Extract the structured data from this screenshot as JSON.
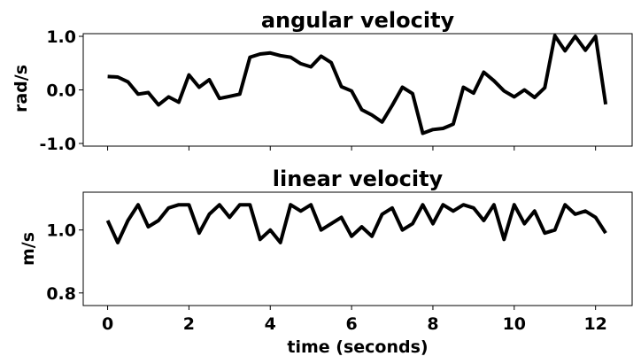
{
  "chart_data": [
    {
      "type": "line",
      "title": "angular velocity",
      "ylabel": "rad/s",
      "xlabel": "",
      "ylim": [
        -1.05,
        1.05
      ],
      "yticks": [
        -1.0,
        0.0,
        1.0
      ],
      "ytick_labels": [
        "-1.0",
        "0.0",
        "1.0"
      ],
      "grid": false,
      "series": [
        {
          "color": "#000000",
          "x": [
            0.0,
            0.25,
            0.5,
            0.75,
            1.0,
            1.25,
            1.5,
            1.75,
            2.0,
            2.25,
            2.5,
            2.75,
            3.0,
            3.25,
            3.5,
            3.75,
            4.0,
            4.25,
            4.5,
            4.75,
            5.0,
            5.25,
            5.5,
            5.75,
            6.0,
            6.25,
            6.5,
            6.75,
            7.0,
            7.25,
            7.5,
            7.75,
            8.0,
            8.25,
            8.5,
            8.75,
            9.0,
            9.25,
            9.5,
            9.75,
            10.0,
            10.25,
            10.5,
            10.75,
            11.0,
            11.25,
            11.5,
            11.75,
            12.0,
            12.25
          ],
          "y": [
            0.25,
            0.24,
            0.15,
            -0.08,
            -0.05,
            -0.28,
            -0.13,
            -0.23,
            0.28,
            0.05,
            0.19,
            -0.16,
            -0.12,
            -0.08,
            0.61,
            0.67,
            0.69,
            0.64,
            0.61,
            0.49,
            0.43,
            0.63,
            0.51,
            0.06,
            -0.02,
            -0.37,
            -0.47,
            -0.6,
            -0.29,
            0.05,
            -0.07,
            -0.81,
            -0.74,
            -0.72,
            -0.64,
            0.05,
            -0.06,
            0.33,
            0.17,
            -0.02,
            -0.13,
            0.0,
            -0.14,
            0.04,
            1.01,
            0.73,
            1.0,
            0.74,
            1.0,
            -0.27
          ]
        }
      ]
    },
    {
      "type": "line",
      "title": "linear velocity",
      "ylabel": "m/s",
      "xlabel": "time (seconds)",
      "xlim": [
        -0.6,
        12.9
      ],
      "xticks": [
        0,
        2,
        4,
        6,
        8,
        10,
        12
      ],
      "xtick_labels": [
        "0",
        "2",
        "4",
        "6",
        "8",
        "10",
        "12"
      ],
      "ylim": [
        0.76,
        1.12
      ],
      "yticks": [
        0.8,
        1.0
      ],
      "ytick_labels": [
        "0.8",
        "1.0"
      ],
      "grid": false,
      "series": [
        {
          "color": "#000000",
          "x": [
            0.0,
            0.25,
            0.5,
            0.75,
            1.0,
            1.25,
            1.5,
            1.75,
            2.0,
            2.25,
            2.5,
            2.75,
            3.0,
            3.25,
            3.5,
            3.75,
            4.0,
            4.25,
            4.5,
            4.75,
            5.0,
            5.25,
            5.5,
            5.75,
            6.0,
            6.25,
            6.5,
            6.75,
            7.0,
            7.25,
            7.5,
            7.75,
            8.0,
            8.25,
            8.5,
            8.75,
            9.0,
            9.25,
            9.5,
            9.75,
            10.0,
            10.25,
            10.5,
            10.75,
            11.0,
            11.25,
            11.5,
            11.75,
            12.0,
            12.25
          ],
          "y": [
            1.03,
            0.96,
            1.03,
            1.08,
            1.01,
            1.03,
            1.07,
            1.08,
            1.08,
            0.99,
            1.05,
            1.08,
            1.04,
            1.08,
            1.08,
            0.97,
            1.0,
            0.96,
            1.08,
            1.06,
            1.08,
            1.0,
            1.02,
            1.04,
            0.98,
            1.01,
            0.98,
            1.05,
            1.07,
            1.0,
            1.02,
            1.08,
            1.02,
            1.08,
            1.06,
            1.08,
            1.07,
            1.03,
            1.08,
            0.97,
            1.08,
            1.02,
            1.06,
            0.99,
            1.0,
            1.08,
            1.05,
            1.06,
            1.04,
            0.99
          ]
        }
      ]
    }
  ]
}
